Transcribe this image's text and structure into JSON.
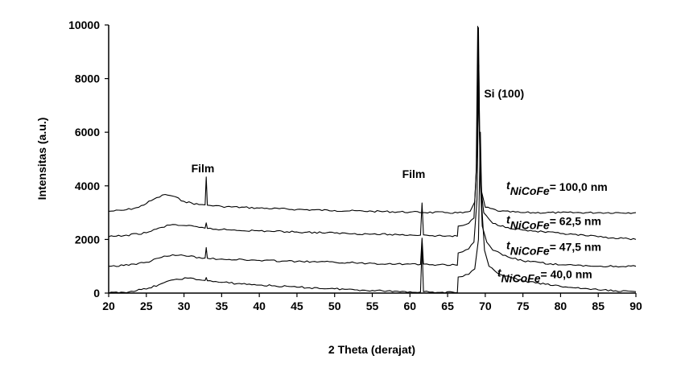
{
  "chart_data": {
    "type": "line",
    "xlabel": "2 Theta (derajat)",
    "ylabel": "Intensitas (a.u.)",
    "xlim": [
      20,
      90
    ],
    "ylim": [
      0,
      10000
    ],
    "xticks": [
      20,
      25,
      30,
      35,
      40,
      45,
      50,
      55,
      60,
      65,
      70,
      75,
      80,
      85,
      90
    ],
    "yticks": [
      0,
      2000,
      4000,
      6000,
      8000,
      10000
    ],
    "grid": false,
    "legend": "none",
    "annotations": [
      {
        "id": "film-33",
        "text": "Film",
        "x": 32.5,
        "y": 4500
      },
      {
        "id": "film-62",
        "text": "Film",
        "x": 60.5,
        "y": 4300
      },
      {
        "id": "si-100",
        "text": "Si (100)",
        "x": 72.5,
        "y": 7300
      }
    ],
    "series": [
      {
        "label_prefix": "t",
        "label_sub": "NiCoFe",
        "label_eq": "=",
        "label_value": "100,0 nm",
        "label_pos": [
          72.8,
          3750
        ],
        "points": [
          [
            20,
            3050
          ],
          [
            22,
            3090
          ],
          [
            24,
            3200
          ],
          [
            26,
            3500
          ],
          [
            27.5,
            3680
          ],
          [
            28.5,
            3620
          ],
          [
            30,
            3420
          ],
          [
            32,
            3300
          ],
          [
            32.8,
            3290
          ],
          [
            32.95,
            4330
          ],
          [
            33.1,
            3280
          ],
          [
            35,
            3230
          ],
          [
            40,
            3170
          ],
          [
            45,
            3120
          ],
          [
            50,
            3080
          ],
          [
            55,
            3050
          ],
          [
            60,
            3020
          ],
          [
            65,
            3000
          ],
          [
            67,
            2990
          ],
          [
            68,
            3050
          ],
          [
            68.6,
            3400
          ],
          [
            68.9,
            5200
          ],
          [
            69.1,
            9900
          ],
          [
            69.25,
            6000
          ],
          [
            69.5,
            3800
          ],
          [
            70,
            3200
          ],
          [
            72,
            3050
          ],
          [
            75,
            3000
          ],
          [
            80,
            3000
          ],
          [
            85,
            3000
          ],
          [
            90,
            3000
          ]
        ]
      },
      {
        "label_prefix": "t",
        "label_sub": "NiCoFe",
        "label_eq": "=",
        "label_value": "62,5 nm",
        "label_pos": [
          72.8,
          2480
        ],
        "points": [
          [
            20,
            2100
          ],
          [
            22,
            2140
          ],
          [
            25,
            2250
          ],
          [
            27,
            2450
          ],
          [
            28.5,
            2560
          ],
          [
            30,
            2520
          ],
          [
            32,
            2450
          ],
          [
            32.8,
            2420
          ],
          [
            32.95,
            2620
          ],
          [
            33.1,
            2410
          ],
          [
            35,
            2370
          ],
          [
            40,
            2320
          ],
          [
            45,
            2280
          ],
          [
            50,
            2240
          ],
          [
            55,
            2200
          ],
          [
            60,
            2170
          ],
          [
            61.4,
            2160
          ],
          [
            61.6,
            3360
          ],
          [
            61.8,
            2170
          ],
          [
            63,
            2140
          ],
          [
            66.3,
            2120
          ],
          [
            66.4,
            2500
          ],
          [
            67,
            2520
          ],
          [
            67.8,
            2600
          ],
          [
            68.5,
            2800
          ],
          [
            68.8,
            4500
          ],
          [
            69.0,
            9950
          ],
          [
            69.15,
            7000
          ],
          [
            69.4,
            4000
          ],
          [
            69.8,
            3000
          ],
          [
            71,
            2600
          ],
          [
            73,
            2450
          ],
          [
            75,
            2350
          ],
          [
            80,
            2220
          ],
          [
            85,
            2100
          ],
          [
            90,
            2000
          ]
        ]
      },
      {
        "label_prefix": "t",
        "label_sub": "NiCoFe",
        "label_eq": "=",
        "label_value": "47,5 nm",
        "label_pos": [
          72.8,
          1520
        ],
        "points": [
          [
            20,
            1000
          ],
          [
            22,
            1030
          ],
          [
            25,
            1150
          ],
          [
            27,
            1330
          ],
          [
            28.5,
            1430
          ],
          [
            30,
            1400
          ],
          [
            32,
            1330
          ],
          [
            32.8,
            1310
          ],
          [
            32.95,
            1700
          ],
          [
            33.1,
            1300
          ],
          [
            35,
            1270
          ],
          [
            40,
            1220
          ],
          [
            45,
            1180
          ],
          [
            50,
            1150
          ],
          [
            55,
            1110
          ],
          [
            60,
            1080
          ],
          [
            61.4,
            1070
          ],
          [
            61.6,
            2050
          ],
          [
            61.8,
            1080
          ],
          [
            63,
            1060
          ],
          [
            66.3,
            1040
          ],
          [
            66.4,
            1500
          ],
          [
            67,
            1540
          ],
          [
            67.8,
            1650
          ],
          [
            68.5,
            1900
          ],
          [
            68.9,
            3500
          ],
          [
            69.15,
            8500
          ],
          [
            69.3,
            4500
          ],
          [
            69.6,
            2500
          ],
          [
            70.2,
            1900
          ],
          [
            71,
            1600
          ],
          [
            73,
            1350
          ],
          [
            75,
            1200
          ],
          [
            80,
            1050
          ],
          [
            85,
            1000
          ],
          [
            90,
            1000
          ]
        ]
      },
      {
        "label_prefix": "t",
        "label_sub": "NiCoFe",
        "label_eq": "=",
        "label_value": "40,0 nm",
        "label_pos": [
          71.6,
          500
        ],
        "points": [
          [
            20,
            0
          ],
          [
            22,
            30
          ],
          [
            25,
            150
          ],
          [
            27,
            350
          ],
          [
            29,
            520
          ],
          [
            30.5,
            560
          ],
          [
            32,
            500
          ],
          [
            32.8,
            470
          ],
          [
            32.95,
            580
          ],
          [
            33.1,
            460
          ],
          [
            35,
            400
          ],
          [
            40,
            300
          ],
          [
            45,
            220
          ],
          [
            50,
            160
          ],
          [
            55,
            100
          ],
          [
            60,
            50
          ],
          [
            61.4,
            40
          ],
          [
            61.6,
            1750
          ],
          [
            61.8,
            50
          ],
          [
            63,
            40
          ],
          [
            66.3,
            20
          ],
          [
            66.4,
            600
          ],
          [
            67,
            620
          ],
          [
            67.8,
            700
          ],
          [
            68.6,
            900
          ],
          [
            69.1,
            2000
          ],
          [
            69.35,
            6000
          ],
          [
            69.55,
            3200
          ],
          [
            69.9,
            1600
          ],
          [
            70.5,
            1000
          ],
          [
            72,
            700
          ],
          [
            75,
            450
          ],
          [
            80,
            250
          ],
          [
            85,
            120
          ],
          [
            90,
            50
          ]
        ]
      }
    ]
  }
}
